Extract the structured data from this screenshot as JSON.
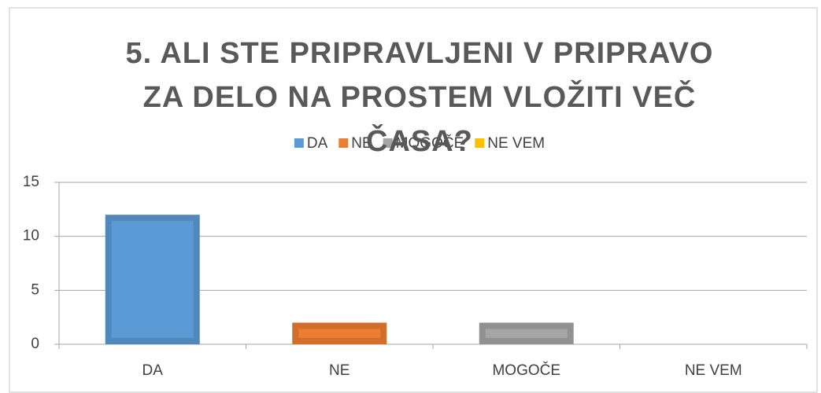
{
  "chart_data": {
    "type": "bar",
    "title": "5. ALI STE PRIPRAVLJENI V PRIPRAVO ZA DELO NA PROSTEM VLOŽITI VEČ ČASA?",
    "categories": [
      "DA",
      "NE",
      "MOGOČE",
      "NE VEM"
    ],
    "values": [
      12,
      2,
      2,
      0
    ],
    "colors": [
      "#5b9bd5",
      "#ed7d31",
      "#a5a5a5",
      "#ffc000"
    ],
    "ylim": [
      0,
      15
    ],
    "yticks": [
      0,
      5,
      10,
      15
    ],
    "grid": true,
    "legend": "top"
  }
}
